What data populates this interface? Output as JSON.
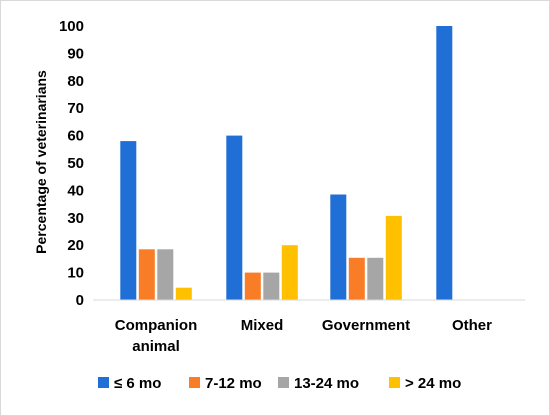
{
  "chart_data": {
    "type": "bar",
    "categories": [
      [
        "Companion",
        "animal"
      ],
      [
        "Mixed"
      ],
      [
        "Government"
      ],
      [
        "Other"
      ]
    ],
    "series": [
      {
        "name": "≤ 6 mo",
        "color": "#1F6FD6",
        "values": [
          58,
          60,
          38.5,
          100
        ]
      },
      {
        "name": "7-12 mo",
        "color": "#F97C27",
        "values": [
          18.5,
          10,
          15.4,
          0
        ]
      },
      {
        "name": "13-24 mo",
        "color": "#A6A6A6",
        "values": [
          18.5,
          10,
          15.4,
          0
        ]
      },
      {
        "name": "> 24 mo",
        "color": "#FFC000",
        "values": [
          4.5,
          20,
          30.7,
          0
        ]
      }
    ],
    "ylabel": "Percentage of veterinarians",
    "xlabel": "",
    "ylim": [
      0,
      100
    ],
    "yticks": [
      0,
      10,
      20,
      30,
      40,
      50,
      60,
      70,
      80,
      90,
      100
    ],
    "grid": false,
    "legend": "bottom"
  }
}
